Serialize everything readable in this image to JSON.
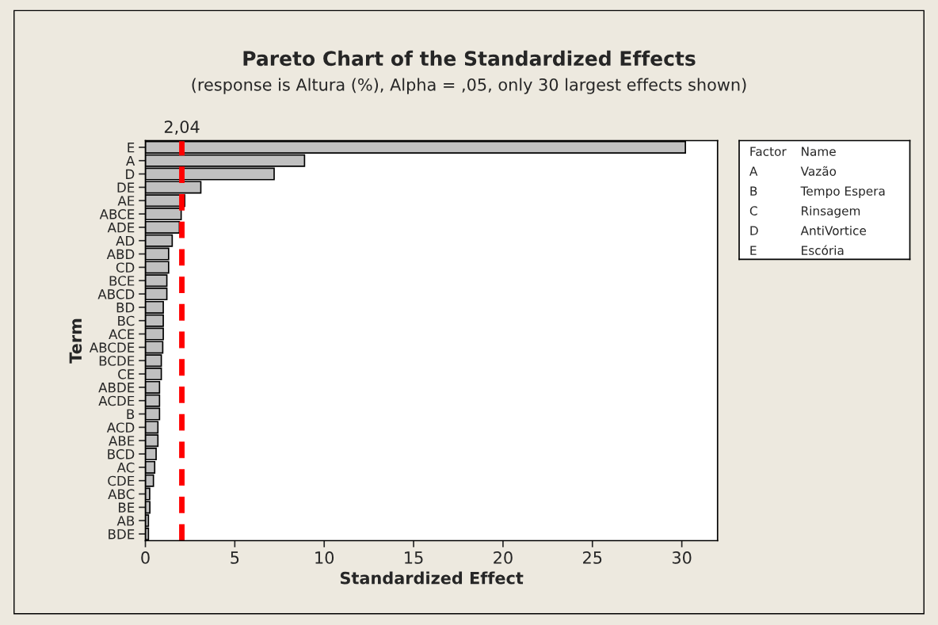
{
  "chart_data": {
    "type": "bar",
    "orientation": "horizontal",
    "title": "Pareto Chart of the Standardized Effects",
    "subtitle": "(response is Altura (%), Alpha = ,05, only 30 largest effects shown)",
    "xlabel": "Standardized Effect",
    "ylabel": "Term",
    "categories": [
      "E",
      "A",
      "D",
      "DE",
      "AE",
      "ABCE",
      "ADE",
      "AD",
      "ABD",
      "CD",
      "BCE",
      "ABCD",
      "BD",
      "BC",
      "ACE",
      "ABCDE",
      "BCDE",
      "CE",
      "ABDE",
      "ACDE",
      "B",
      "ACD",
      "ABE",
      "BCD",
      "AC",
      "CDE",
      "ABC",
      "BE",
      "AB",
      "BDE"
    ],
    "values": [
      30.2,
      8.9,
      7.2,
      3.1,
      2.2,
      2.0,
      1.9,
      1.5,
      1.3,
      1.3,
      1.2,
      1.2,
      1.0,
      1.0,
      1.0,
      0.97,
      0.89,
      0.89,
      0.79,
      0.79,
      0.79,
      0.7,
      0.7,
      0.6,
      0.52,
      0.45,
      0.24,
      0.25,
      0.17,
      0.17
    ],
    "color": "#c0c0c0",
    "xlim": [
      0,
      32
    ],
    "xticks": [
      0,
      5,
      10,
      15,
      20,
      25,
      30
    ],
    "grid": false,
    "legend": false,
    "ref_lines": [
      {
        "axis": "x",
        "value": 2.04,
        "label": "2,04",
        "color": "#ff0000",
        "line_style": "dashed"
      }
    ],
    "annotations": [
      "Factor",
      "Name",
      "A",
      "Vazão",
      "B",
      "Tempo Espera",
      "C",
      "Rinsagem",
      "D",
      "AntiVortice",
      "E",
      "Escória"
    ]
  }
}
